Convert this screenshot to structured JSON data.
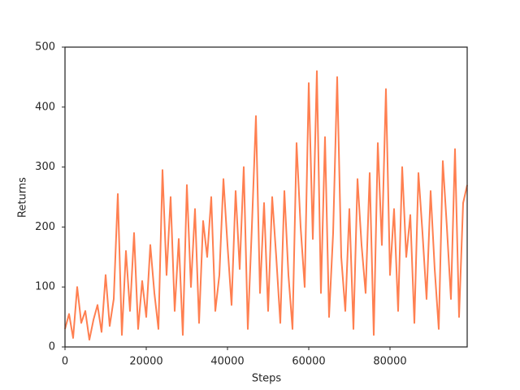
{
  "chart_data": {
    "type": "line",
    "x_label": "Steps",
    "y_label": "Returns",
    "x": [
      0,
      1000,
      2000,
      3000,
      4000,
      5000,
      6000,
      7000,
      8000,
      9000,
      10000,
      11000,
      12000,
      13000,
      14000,
      15000,
      16000,
      17000,
      18000,
      19000,
      20000,
      21000,
      22000,
      23000,
      24000,
      25000,
      26000,
      27000,
      28000,
      29000,
      30000,
      31000,
      32000,
      33000,
      34000,
      35000,
      36000,
      37000,
      38000,
      39000,
      40000,
      41000,
      42000,
      43000,
      44000,
      45000,
      46000,
      47000,
      48000,
      49000,
      50000,
      51000,
      52000,
      53000,
      54000,
      55000,
      56000,
      57000,
      58000,
      59000,
      60000,
      61000,
      62000,
      63000,
      64000,
      65000,
      66000,
      67000,
      68000,
      69000,
      70000,
      71000,
      72000,
      73000,
      74000,
      75000,
      76000,
      77000,
      78000,
      79000,
      80000,
      81000,
      82000,
      83000,
      84000,
      85000,
      86000,
      87000,
      88000,
      89000,
      90000,
      91000,
      92000,
      93000,
      94000,
      95000,
      96000,
      97000,
      98000,
      99000
    ],
    "values": [
      30,
      55,
      15,
      100,
      40,
      60,
      12,
      45,
      70,
      25,
      120,
      35,
      80,
      255,
      20,
      160,
      60,
      190,
      30,
      110,
      50,
      170,
      90,
      30,
      295,
      120,
      250,
      60,
      180,
      20,
      270,
      100,
      230,
      40,
      210,
      150,
      250,
      60,
      120,
      280,
      170,
      70,
      260,
      130,
      300,
      30,
      200,
      385,
      90,
      240,
      60,
      250,
      150,
      40,
      260,
      120,
      30,
      340,
      200,
      100,
      440,
      180,
      460,
      90,
      350,
      50,
      190,
      450,
      150,
      60,
      230,
      30,
      280,
      170,
      90,
      290,
      20,
      340,
      170,
      430,
      120,
      230,
      60,
      300,
      150,
      220,
      40,
      290,
      190,
      80,
      260,
      130,
      30,
      310,
      200,
      80,
      330,
      50,
      240,
      270
    ],
    "color": "#ff7f50",
    "xlim": [
      0,
      99000
    ],
    "xticks": [
      0,
      20000,
      40000,
      60000,
      80000
    ],
    "ylim": [
      0,
      500
    ],
    "yticks": [
      0,
      100,
      200,
      300,
      400,
      500
    ]
  }
}
